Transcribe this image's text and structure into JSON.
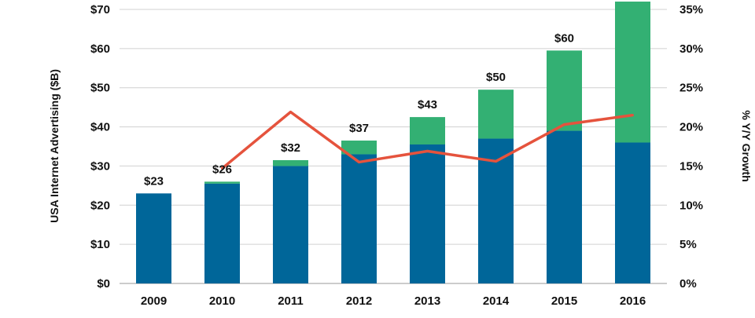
{
  "chart_data": {
    "type": "bar",
    "stacked": true,
    "categories": [
      "2009",
      "2010",
      "2011",
      "2012",
      "2013",
      "2014",
      "2015",
      "2016"
    ],
    "series": [
      {
        "values": [
          23,
          25.5,
          30,
          33,
          35.5,
          37,
          39,
          36
        ],
        "color": "#006699"
      },
      {
        "values": [
          0,
          0.5,
          1.5,
          3.5,
          7,
          12.5,
          20.5,
          36
        ],
        "color": "#33b073"
      }
    ],
    "line_series": {
      "axis": "right",
      "color": "#e5533d",
      "x": [
        "2010",
        "2011",
        "2012",
        "2013",
        "2014",
        "2015",
        "2016"
      ],
      "values": [
        14.7,
        21.9,
        15.5,
        16.9,
        15.6,
        20.3,
        21.5
      ]
    },
    "bar_labels": [
      "$23",
      "$26",
      "$32",
      "$37",
      "$43",
      "$50",
      "$60",
      ""
    ],
    "ylabel": "USA Internet Advertising ($B)",
    "y2label": "% Y/Y Growth",
    "xlabel": "",
    "ylim": [
      0,
      70
    ],
    "y2lim": [
      0,
      35
    ],
    "y_ticks": [
      "$0",
      "$10",
      "$20",
      "$30",
      "$40",
      "$50",
      "$60",
      "$70"
    ],
    "y2_ticks": [
      "0%",
      "5%",
      "10%",
      "15%",
      "20%",
      "25%",
      "30%",
      "35%"
    ],
    "grid": true,
    "legend": "none"
  }
}
